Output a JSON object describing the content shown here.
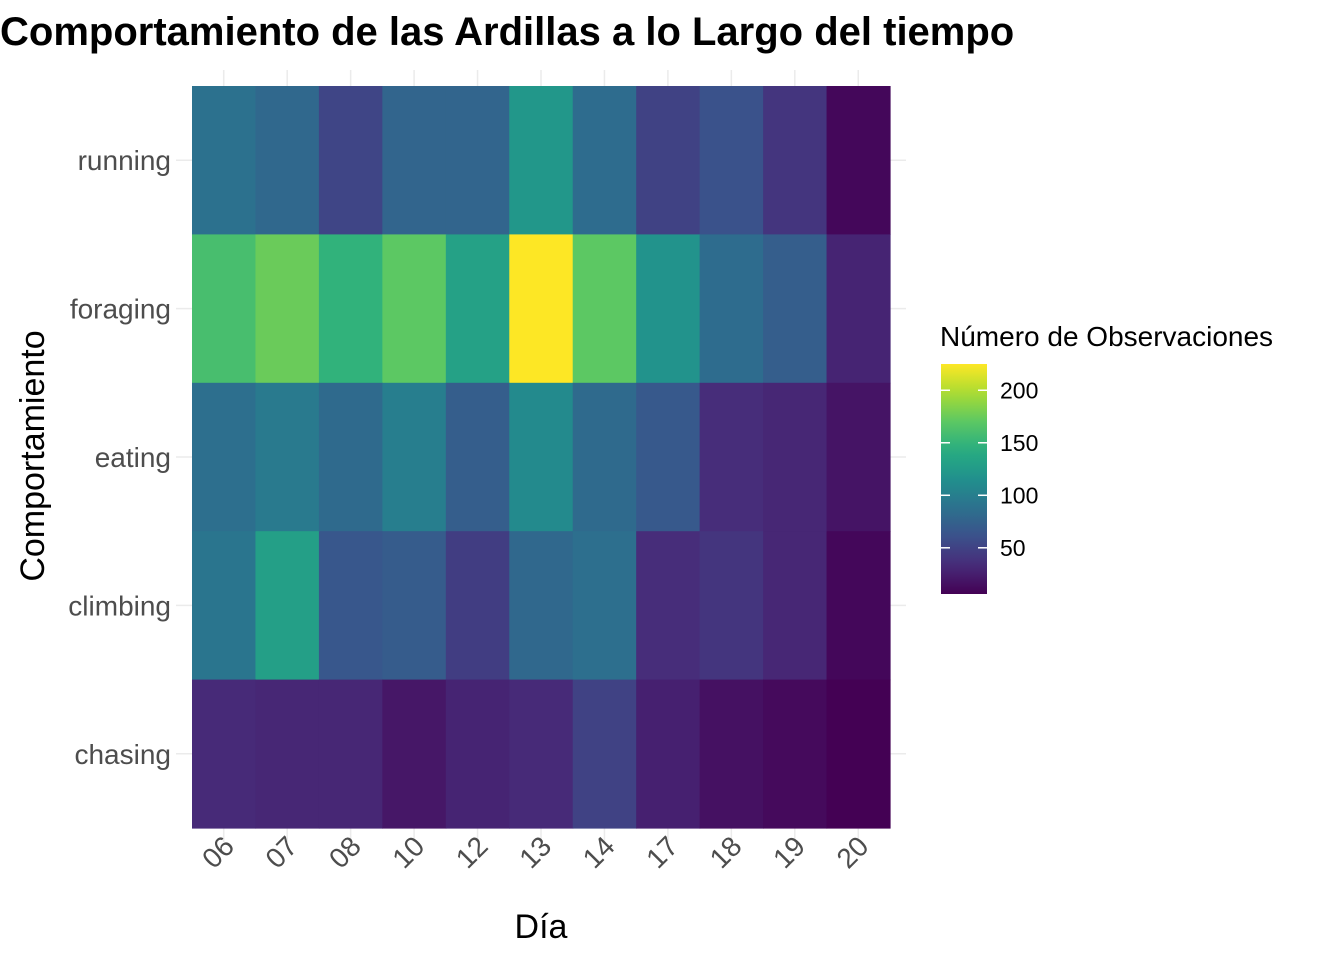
{
  "chart_data": {
    "type": "heatmap",
    "title": "Comportamiento de las Ardillas a lo Largo del tiempo",
    "xlabel": "Día",
    "ylabel": "Comportamiento",
    "x": [
      "06",
      "07",
      "08",
      "10",
      "12",
      "13",
      "14",
      "17",
      "18",
      "19",
      "20"
    ],
    "y": [
      "running",
      "foraging",
      "eating",
      "climbing",
      "chasing"
    ],
    "values": [
      [
        88,
        80,
        52,
        78,
        78,
        122,
        84,
        50,
        62,
        40,
        10
      ],
      [
        160,
        175,
        148,
        170,
        132,
        225,
        170,
        118,
        84,
        72,
        28
      ],
      [
        86,
        96,
        82,
        100,
        72,
        110,
        82,
        68,
        34,
        30,
        18
      ],
      [
        92,
        130,
        66,
        70,
        46,
        80,
        86,
        34,
        40,
        30,
        10
      ],
      [
        32,
        30,
        30,
        20,
        28,
        32,
        50,
        26,
        16,
        12,
        6
      ]
    ],
    "legend": {
      "title": "Número de Observaciones",
      "ticks": [
        50,
        100,
        150,
        200
      ],
      "range": [
        6,
        225
      ],
      "position": "right",
      "colorscale": "viridis"
    },
    "grid": true
  }
}
